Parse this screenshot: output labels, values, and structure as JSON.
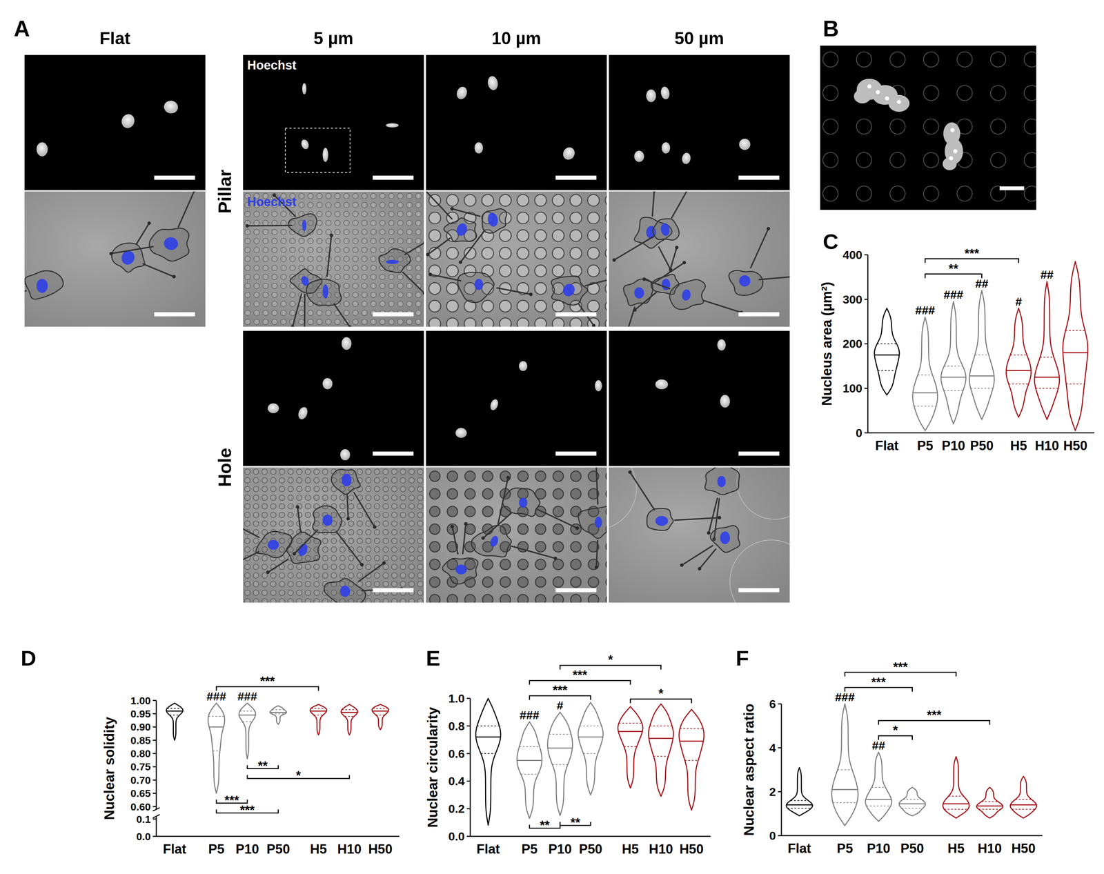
{
  "figure_a": {
    "panel_label": "A",
    "columns": [
      "Flat",
      "5 µm",
      "10 µm",
      "50 µm"
    ],
    "rows": [
      "Pillar",
      "Hole"
    ],
    "channel_label": "Hoechst"
  },
  "figure_b": {
    "panel_label": "B"
  },
  "chart_data": [
    {
      "type": "violin",
      "panel_label": "C",
      "y_label": "Nucleus area (µm²)",
      "categories": [
        "Flat",
        "P5",
        "P10",
        "P50",
        "H5",
        "H10",
        "H50"
      ],
      "colors": [
        "#000000",
        "#7f7f7f",
        "#7f7f7f",
        "#7f7f7f",
        "#a50f15",
        "#a50f15",
        "#a50f15"
      ],
      "min": [
        85,
        5,
        20,
        30,
        35,
        30,
        5
      ],
      "q1": [
        140,
        60,
        95,
        100,
        110,
        100,
        110
      ],
      "median": [
        175,
        90,
        125,
        128,
        140,
        125,
        180
      ],
      "q3": [
        200,
        130,
        150,
        175,
        175,
        170,
        230
      ],
      "max": [
        280,
        260,
        295,
        320,
        280,
        340,
        385
      ],
      "ylim": [
        0,
        400
      ],
      "yticks": [
        0,
        100,
        200,
        300,
        400
      ],
      "significance_vs_flat": [
        null,
        "###",
        "###",
        "##",
        "#",
        "##",
        null
      ],
      "comparisons": [
        {
          "from": 1,
          "to": 3,
          "label": "**",
          "side": "top"
        },
        {
          "from": 1,
          "to": 4,
          "label": "***",
          "side": "top"
        }
      ]
    },
    {
      "type": "violin",
      "panel_label": "D",
      "y_label": "Nuclear solidity",
      "categories": [
        "Flat",
        "P5",
        "P10",
        "P50",
        "H5",
        "H10",
        "H50"
      ],
      "colors": [
        "#000000",
        "#7f7f7f",
        "#7f7f7f",
        "#7f7f7f",
        "#a50f15",
        "#a50f15",
        "#a50f15"
      ],
      "min": [
        0.85,
        0.65,
        0.78,
        0.91,
        0.87,
        0.87,
        0.89
      ],
      "q1": [
        0.945,
        0.81,
        0.92,
        0.95,
        0.945,
        0.94,
        0.945
      ],
      "median": [
        0.96,
        0.9,
        0.945,
        0.955,
        0.96,
        0.955,
        0.96
      ],
      "q3": [
        0.97,
        0.94,
        0.96,
        0.965,
        0.97,
        0.965,
        0.97
      ],
      "max": [
        0.99,
        0.99,
        0.99,
        0.98,
        0.985,
        0.985,
        0.985
      ],
      "ylim": [
        0,
        1.0
      ],
      "axis_break": [
        0.1,
        0.6
      ],
      "yticks": [
        {
          "value": 0,
          "label": "0.0"
        },
        0.1,
        {
          "value": 0.6,
          "label": "0.60"
        },
        0.65,
        {
          "value": 0.7,
          "label": "0.70"
        },
        0.75,
        {
          "value": 0.8,
          "label": "0.80"
        },
        0.85,
        {
          "value": 0.9,
          "label": "0.90"
        },
        0.95,
        {
          "value": 1.0,
          "label": "1.00"
        }
      ],
      "significance_vs_flat": [
        null,
        "###",
        "###",
        null,
        null,
        null,
        null
      ],
      "comparisons": [
        {
          "from": 1,
          "to": 4,
          "label": "***",
          "side": "top"
        },
        {
          "from": 2,
          "to": 3,
          "label": "**",
          "side": "bottom"
        },
        {
          "from": 2,
          "to": 5,
          "label": "*",
          "side": "bottom"
        },
        {
          "from": 1,
          "to": 2,
          "label": "***",
          "side": "bottom"
        },
        {
          "from": 1,
          "to": 3,
          "label": "***",
          "side": "bottom"
        }
      ]
    },
    {
      "type": "violin",
      "panel_label": "E",
      "y_label": "Nuclear circularity",
      "categories": [
        "Flat",
        "P5",
        "P10",
        "P50",
        "H5",
        "H10",
        "H50"
      ],
      "colors": [
        "#000000",
        "#7f7f7f",
        "#7f7f7f",
        "#7f7f7f",
        "#a50f15",
        "#a50f15",
        "#a50f15"
      ],
      "min": [
        0.08,
        0.13,
        0.15,
        0.3,
        0.35,
        0.29,
        0.19
      ],
      "q1": [
        0.6,
        0.45,
        0.52,
        0.6,
        0.65,
        0.58,
        0.55
      ],
      "median": [
        0.72,
        0.55,
        0.64,
        0.72,
        0.76,
        0.71,
        0.69
      ],
      "q3": [
        0.8,
        0.65,
        0.74,
        0.8,
        0.82,
        0.8,
        0.78
      ],
      "max": [
        1.0,
        0.83,
        0.9,
        0.97,
        0.94,
        0.96,
        0.92
      ],
      "ylim": [
        0,
        1.0
      ],
      "yticks": [
        {
          "value": 0,
          "label": "0.0"
        },
        0.2,
        0.4,
        0.6,
        0.8,
        {
          "value": 1.0,
          "label": "1.0"
        }
      ],
      "significance_vs_flat": [
        null,
        "###",
        "#",
        null,
        null,
        null,
        null
      ],
      "comparisons": [
        {
          "from": 4,
          "to": 6,
          "label": "*",
          "side": "top"
        },
        {
          "from": 1,
          "to": 3,
          "label": "***",
          "side": "top"
        },
        {
          "from": 1,
          "to": 4,
          "label": "***",
          "side": "top"
        },
        {
          "from": 2,
          "to": 5,
          "label": "*",
          "side": "top"
        },
        {
          "from": 1,
          "to": 2,
          "label": "**",
          "side": "bottom"
        },
        {
          "from": 2,
          "to": 3,
          "label": "**",
          "side": "bottom"
        }
      ]
    },
    {
      "type": "violin",
      "panel_label": "F",
      "y_label": "Nuclear aspect ratio",
      "categories": [
        "Flat",
        "P5",
        "P10",
        "P50",
        "H5",
        "H10",
        "H50"
      ],
      "colors": [
        "#000000",
        "#7f7f7f",
        "#7f7f7f",
        "#7f7f7f",
        "#a50f15",
        "#a50f15",
        "#a50f15"
      ],
      "min": [
        0.9,
        0.45,
        0.65,
        0.9,
        0.8,
        0.8,
        0.8
      ],
      "q1": [
        1.25,
        1.5,
        1.35,
        1.25,
        1.2,
        1.2,
        1.2
      ],
      "median": [
        1.4,
        2.1,
        1.65,
        1.45,
        1.45,
        1.35,
        1.4
      ],
      "q3": [
        1.6,
        3.0,
        2.2,
        1.65,
        1.8,
        1.55,
        1.65
      ],
      "max": [
        3.1,
        6.0,
        3.8,
        2.2,
        3.6,
        2.2,
        2.7
      ],
      "ylim": [
        0,
        6
      ],
      "yticks": [
        0,
        2,
        4,
        6
      ],
      "significance_vs_flat": [
        null,
        "###",
        "##",
        null,
        null,
        null,
        null
      ],
      "comparisons": [
        {
          "from": 2,
          "to": 3,
          "label": "*",
          "side": "top"
        },
        {
          "from": 2,
          "to": 5,
          "label": "***",
          "side": "top"
        },
        {
          "from": 1,
          "to": 3,
          "label": "***",
          "side": "top"
        },
        {
          "from": 1,
          "to": 4,
          "label": "***",
          "side": "top"
        }
      ]
    }
  ]
}
